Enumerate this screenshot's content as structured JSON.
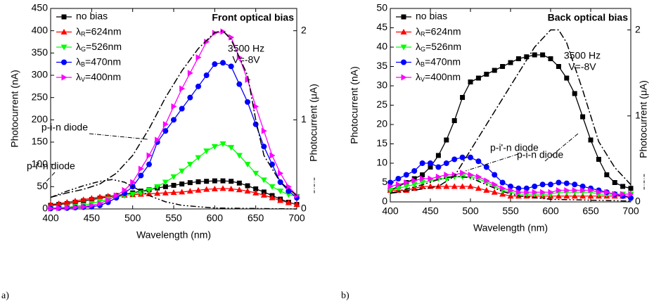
{
  "chart_data": [
    {
      "type": "line",
      "panel_label": "a)",
      "title": "Front optical bias",
      "annotations": [
        "3500 Hz",
        "V=-8V"
      ],
      "x_label": "Wavelength (nm)",
      "y_label": "Photocurrent (nA)",
      "y2_label": "Photocurrent (μA)",
      "x": [
        400,
        410,
        420,
        430,
        440,
        450,
        460,
        470,
        480,
        490,
        500,
        510,
        520,
        530,
        540,
        550,
        560,
        570,
        580,
        590,
        600,
        610,
        620,
        630,
        640,
        650,
        660,
        670,
        680,
        690,
        700
      ],
      "xlim": [
        400,
        700
      ],
      "xticks": [
        400,
        450,
        500,
        550,
        600,
        650,
        700
      ],
      "ylim": [
        0,
        450
      ],
      "yticks": [
        0,
        50,
        100,
        150,
        200,
        250,
        300,
        350,
        400,
        450
      ],
      "y2lim": [
        0,
        2.25
      ],
      "y2ticks": [
        0,
        1,
        2
      ],
      "series": [
        {
          "name": "no bias",
          "color": "#000000",
          "marker": "square",
          "values": [
            8,
            10,
            12,
            15,
            18,
            21,
            24,
            27,
            30,
            33,
            36,
            40,
            43,
            47,
            50,
            53,
            56,
            59,
            61,
            62,
            63,
            63,
            62,
            58,
            52,
            45,
            38,
            30,
            22,
            15,
            10
          ]
        },
        {
          "name": "λR=624nm",
          "color": "#ff0000",
          "marker": "triangle-up",
          "values": [
            10,
            12,
            15,
            18,
            21,
            24,
            27,
            29,
            30,
            31,
            32,
            33,
            34,
            35,
            36,
            37,
            38,
            40,
            42,
            44,
            45,
            46,
            45,
            43,
            40,
            36,
            31,
            25,
            19,
            14,
            10
          ]
        },
        {
          "name": "λG=526nm",
          "color": "#00ff00",
          "marker": "triangle-down",
          "values": [
            2,
            3,
            4,
            6,
            8,
            12,
            17,
            22,
            27,
            30,
            33,
            36,
            42,
            50,
            60,
            72,
            85,
            100,
            115,
            130,
            140,
            146,
            138,
            120,
            100,
            80,
            65,
            50,
            40,
            32,
            28
          ]
        },
        {
          "name": "λB=470nm",
          "color": "#0000ff",
          "marker": "circle",
          "values": [
            1,
            2,
            2,
            3,
            4,
            5,
            8,
            15,
            25,
            35,
            50,
            75,
            100,
            150,
            175,
            200,
            225,
            250,
            275,
            300,
            325,
            328,
            320,
            280,
            240,
            190,
            140,
            100,
            60,
            40,
            25
          ]
        },
        {
          "name": "λV=400nm",
          "color": "#ff00ff",
          "marker": "triangle-right",
          "values": [
            1,
            2,
            3,
            4,
            5,
            8,
            12,
            20,
            30,
            42,
            60,
            90,
            120,
            155,
            190,
            230,
            270,
            305,
            340,
            375,
            395,
            398,
            385,
            340,
            290,
            230,
            175,
            120,
            80,
            50,
            30
          ]
        }
      ],
      "curves": [
        {
          "label": "p-i-n diode",
          "axis": "y2",
          "x": [
            400,
            420,
            440,
            460,
            480,
            500,
            520,
            540,
            560,
            580,
            600,
            610,
            620,
            640,
            650,
            660,
            680,
            700
          ],
          "values": [
            0.13,
            0.18,
            0.22,
            0.28,
            0.4,
            0.6,
            0.9,
            1.25,
            1.55,
            1.8,
            1.98,
            2.0,
            1.9,
            1.5,
            1.0,
            0.6,
            0.3,
            0.15
          ]
        },
        {
          "label": "p-i'-n diode",
          "axis": "y2",
          "x": [
            400,
            420,
            440,
            460,
            475,
            490,
            500,
            520,
            540,
            560,
            600,
            650,
            700
          ],
          "values": [
            0.13,
            0.2,
            0.26,
            0.31,
            0.33,
            0.3,
            0.25,
            0.15,
            0.08,
            0.04,
            0.01,
            0.005,
            0
          ]
        }
      ]
    },
    {
      "type": "line",
      "panel_label": "b)",
      "title": "Back optical bias",
      "annotations": [
        "3500 Hz",
        "V=-8V"
      ],
      "x_label": "Wavelength (nm)",
      "y_label": "Photocurrent (nA)",
      "y2_label": "Photocurrent (μA)",
      "x": [
        400,
        410,
        420,
        430,
        440,
        450,
        460,
        470,
        480,
        490,
        500,
        510,
        520,
        530,
        540,
        550,
        560,
        570,
        580,
        590,
        600,
        610,
        620,
        630,
        640,
        650,
        660,
        670,
        680,
        690,
        700
      ],
      "xlim": [
        400,
        700
      ],
      "xticks": [
        400,
        450,
        500,
        550,
        600,
        650,
        700
      ],
      "ylim": [
        0,
        50
      ],
      "yticks": [
        0,
        5,
        10,
        15,
        20,
        25,
        30,
        35,
        40,
        45,
        50
      ],
      "y2lim": [
        0,
        2.25
      ],
      "y2ticks": [
        0,
        1,
        2
      ],
      "series": [
        {
          "name": "no bias",
          "color": "#000000",
          "marker": "square",
          "values": [
            3,
            4,
            5,
            6,
            7,
            9,
            12,
            16,
            21,
            27,
            31,
            32,
            33,
            34,
            35,
            36,
            37,
            37.5,
            38,
            38,
            37,
            35,
            32,
            28,
            22,
            16,
            11,
            7,
            5,
            4,
            3.5
          ]
        },
        {
          "name": "λR=624nm",
          "color": "#ff0000",
          "marker": "triangle-up",
          "values": [
            3,
            3,
            3,
            3.5,
            4,
            4,
            4,
            4,
            4,
            4,
            4,
            3.5,
            3,
            2.5,
            2,
            1.5,
            1.5,
            1.5,
            1.5,
            1.5,
            1.5,
            1.5,
            1.5,
            1.5,
            1.5,
            1.5,
            1.5,
            1.5,
            1.5,
            1.5,
            1.5
          ]
        },
        {
          "name": "λG=526nm",
          "color": "#00ff00",
          "marker": "triangle-down",
          "values": [
            3,
            3.5,
            4,
            4.5,
            5,
            5.5,
            6,
            6,
            6.5,
            6.5,
            6.5,
            6,
            5,
            4,
            3,
            2.5,
            2,
            2,
            2,
            2,
            2,
            2.5,
            2.5,
            2.5,
            2.5,
            2.5,
            2,
            2,
            2,
            2,
            2
          ]
        },
        {
          "name": "λB=470nm",
          "color": "#0000ff",
          "marker": "circle",
          "values": [
            5,
            6,
            7,
            8,
            10,
            10,
            9,
            10,
            11,
            11.5,
            11.5,
            10.5,
            9,
            7,
            5,
            4,
            3.5,
            3.5,
            4,
            4.5,
            4.5,
            5,
            4.8,
            4.5,
            4,
            3.5,
            3,
            2.5,
            2,
            1.5,
            1
          ]
        },
        {
          "name": "λV=400nm",
          "color": "#ff00ff",
          "marker": "triangle-right",
          "values": [
            4,
            4.5,
            5,
            5.5,
            6,
            6,
            6.5,
            7,
            7,
            7.5,
            7,
            6.5,
            5.5,
            4.5,
            3.5,
            3,
            2.5,
            2.5,
            2.5,
            2.5,
            2.5,
            3,
            3,
            3,
            3,
            3,
            2.5,
            2.5,
            2,
            2,
            2
          ]
        }
      ],
      "curves": [
        {
          "label": "p-i-n diode",
          "axis": "y2",
          "x": [
            400,
            440,
            460,
            480,
            500,
            520,
            540,
            560,
            580,
            600,
            610,
            620,
            640,
            660,
            680,
            700
          ],
          "values": [
            0.1,
            0.15,
            0.18,
            0.3,
            0.6,
            0.9,
            1.2,
            1.5,
            1.8,
            2.0,
            2.0,
            1.85,
            1.3,
            0.7,
            0.4,
            0.2
          ]
        },
        {
          "label": "p-i'-n diode",
          "axis": "y2",
          "x": [
            400,
            440,
            460,
            480,
            500,
            520,
            540,
            560,
            600,
            700
          ],
          "values": [
            0.1,
            0.2,
            0.26,
            0.3,
            0.28,
            0.2,
            0.12,
            0.07,
            0.03,
            0.01
          ]
        }
      ]
    }
  ]
}
